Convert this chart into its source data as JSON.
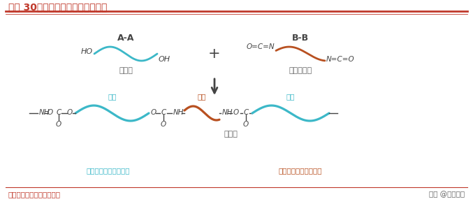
{
  "title": "图表 30：聚氨酯结构与性能的关系",
  "title_color": "#c0392b",
  "bg_color": "#ffffff",
  "border_color": "#c0392b",
  "footer_left": "资料来源：中泰证券研究所",
  "footer_right": "头条 @未来智库",
  "footer_color": "#c0392b",
  "soft_color": "#3cb8c8",
  "hard_color": "#b85020",
  "text_color": "#444444",
  "label_soft": "软段",
  "label_hard": "硬段",
  "label_soft_desc": "软段：橡胶性质和弹性",
  "label_hard_desc": "硬段：塑料性质和强度",
  "reactant1_label": "A-A",
  "reactant1_name": "多元醇",
  "reactant2_label": "B-B",
  "reactant2_name": "多异氰酸酯",
  "product_name": "聚氨酯"
}
